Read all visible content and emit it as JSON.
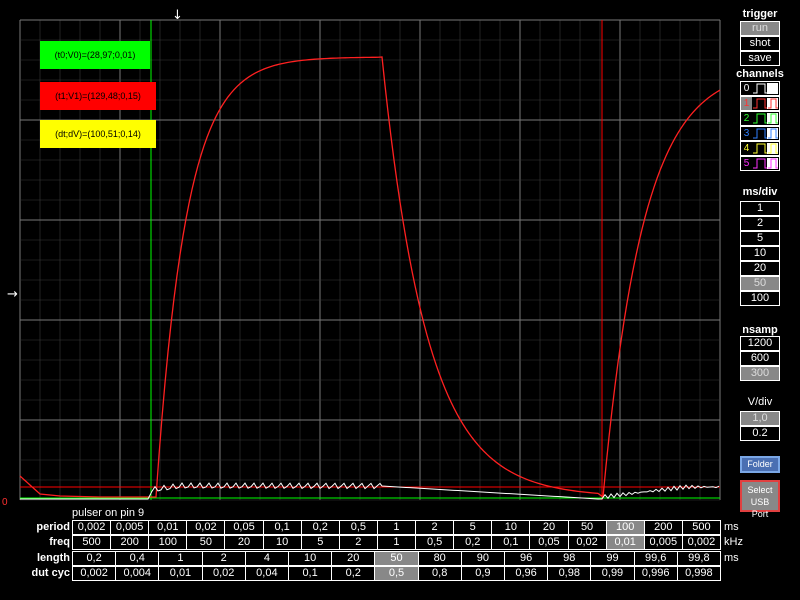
{
  "cursors": {
    "t0v0": "(t0;V0)=(28,97;0,01)",
    "t1v1": "(t1;V1)=(129,48;0,15)",
    "dtdv": "(dt;dV)=(100,51;0,14)"
  },
  "scope": {
    "zero_marker": "0",
    "top_arrow": "↓",
    "left_arrow": "→",
    "colors": {
      "green": "#00ff00",
      "red": "#ff0000",
      "yellow": "#ffff00",
      "grid": "#555555"
    }
  },
  "trigger": {
    "title": "trigger",
    "buttons": [
      {
        "label": "run",
        "selected": true
      },
      {
        "label": "shot",
        "selected": false
      },
      {
        "label": "save",
        "selected": false
      }
    ]
  },
  "channels": {
    "title": "channels",
    "items": [
      {
        "num": "0",
        "color": "#ffffff",
        "selected": false
      },
      {
        "num": "1",
        "color": "#ff3030",
        "selected": true
      },
      {
        "num": "2",
        "color": "#30ff30",
        "selected": false
      },
      {
        "num": "3",
        "color": "#3080ff",
        "selected": false
      },
      {
        "num": "4",
        "color": "#ffff30",
        "selected": false
      },
      {
        "num": "5",
        "color": "#ff30ff",
        "selected": false
      }
    ]
  },
  "msdiv": {
    "title": "ms/div",
    "options": [
      {
        "label": "1",
        "selected": false
      },
      {
        "label": "2",
        "selected": false
      },
      {
        "label": "5",
        "selected": false
      },
      {
        "label": "10",
        "selected": false
      },
      {
        "label": "20",
        "selected": false
      },
      {
        "label": "50",
        "selected": true
      },
      {
        "label": "100",
        "selected": false
      }
    ]
  },
  "nsamp": {
    "title": "nsamp",
    "options": [
      {
        "label": "1200",
        "selected": false
      },
      {
        "label": "600",
        "selected": false
      },
      {
        "label": "300",
        "selected": true
      }
    ]
  },
  "vdiv": {
    "title": "V/div",
    "options": [
      {
        "label": "1,0",
        "selected": true
      },
      {
        "label": "0.2",
        "selected": false
      }
    ]
  },
  "folder_label": "Folder",
  "usb_label_1": "Select",
  "usb_label_2": "USB Port",
  "pulser": {
    "title": "pulser on pin 9",
    "rows": [
      {
        "label": "period",
        "unit": "ms",
        "selected": 14,
        "cells": [
          "0,002",
          "0,005",
          "0,01",
          "0,02",
          "0,05",
          "0,1",
          "0,2",
          "0,5",
          "1",
          "2",
          "5",
          "10",
          "20",
          "50",
          "100",
          "200",
          "500"
        ]
      },
      {
        "label": "freq",
        "unit": "kHz",
        "selected": 14,
        "cells": [
          "500",
          "200",
          "100",
          "50",
          "20",
          "10",
          "5",
          "2",
          "1",
          "0,5",
          "0,2",
          "0,1",
          "0,05",
          "0,02",
          "0,01",
          "0,005",
          "0,002"
        ]
      },
      {
        "label": "length",
        "unit": "ms",
        "selected": 7,
        "cells": [
          "0,2",
          "0,4",
          "1",
          "2",
          "4",
          "10",
          "20",
          "50",
          "80",
          "90",
          "96",
          "98",
          "99",
          "99,6",
          "99,8"
        ]
      },
      {
        "label": "dut cyc",
        "unit": "",
        "selected": 7,
        "cells": [
          "0,002",
          "0,004",
          "0,01",
          "0,02",
          "0,04",
          "0,1",
          "0,2",
          "0,5",
          "0,8",
          "0,9",
          "0,96",
          "0,98",
          "0,99",
          "0,996",
          "0,998"
        ]
      }
    ]
  }
}
